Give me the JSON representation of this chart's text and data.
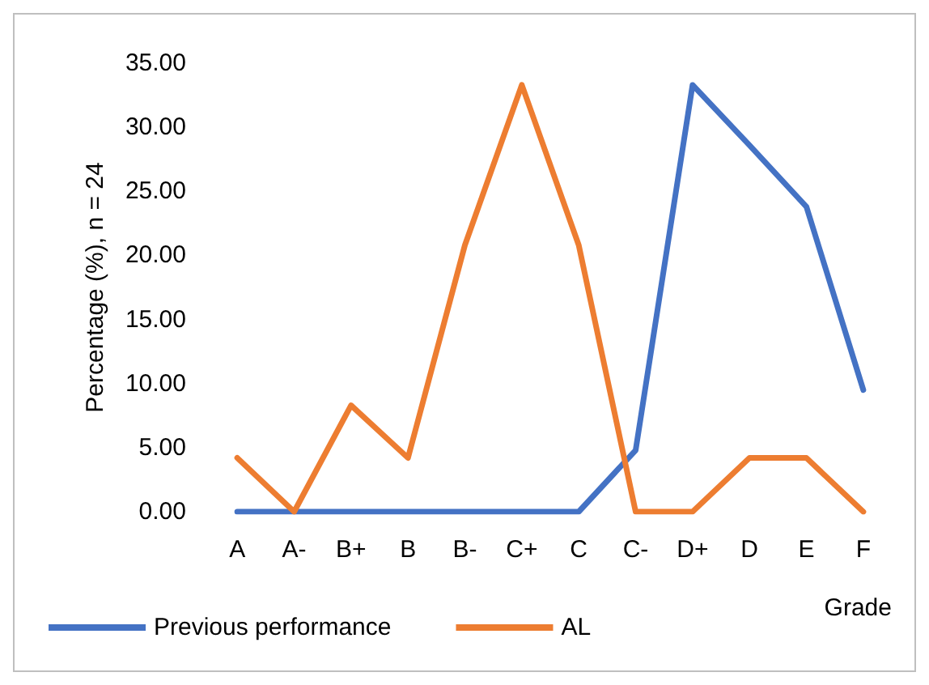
{
  "chart_data": {
    "type": "line",
    "ylabel": "Percentage (%), n = 24",
    "xlabel": "Grade",
    "categories": [
      "A",
      "A-",
      "B+",
      "B",
      "B-",
      "C+",
      "C",
      "C-",
      "D+",
      "D",
      "E",
      "F"
    ],
    "series": [
      {
        "name": "Previous performance",
        "color": "#4472c4",
        "values": [
          0,
          0,
          0,
          0,
          0,
          0,
          0,
          4.8,
          33.3,
          28.6,
          23.8,
          9.5
        ]
      },
      {
        "name": "AL",
        "color": "#ed7d31",
        "values": [
          4.2,
          0,
          8.3,
          4.2,
          20.8,
          33.3,
          20.8,
          0,
          0,
          4.2,
          4.2,
          0
        ]
      }
    ],
    "ylim": [
      0,
      35
    ],
    "yticks": [
      {
        "value": 0,
        "label": "0.00"
      },
      {
        "value": 5,
        "label": "5.00"
      },
      {
        "value": 10,
        "label": "10.00"
      },
      {
        "value": 15,
        "label": "15.00"
      },
      {
        "value": 20,
        "label": "20.00"
      },
      {
        "value": 25,
        "label": "25.00"
      },
      {
        "value": 30,
        "label": "30.00"
      },
      {
        "value": 35,
        "label": "35.00"
      }
    ],
    "grid": false,
    "legend": "bottom",
    "marker": "none",
    "line_style": "solid"
  }
}
